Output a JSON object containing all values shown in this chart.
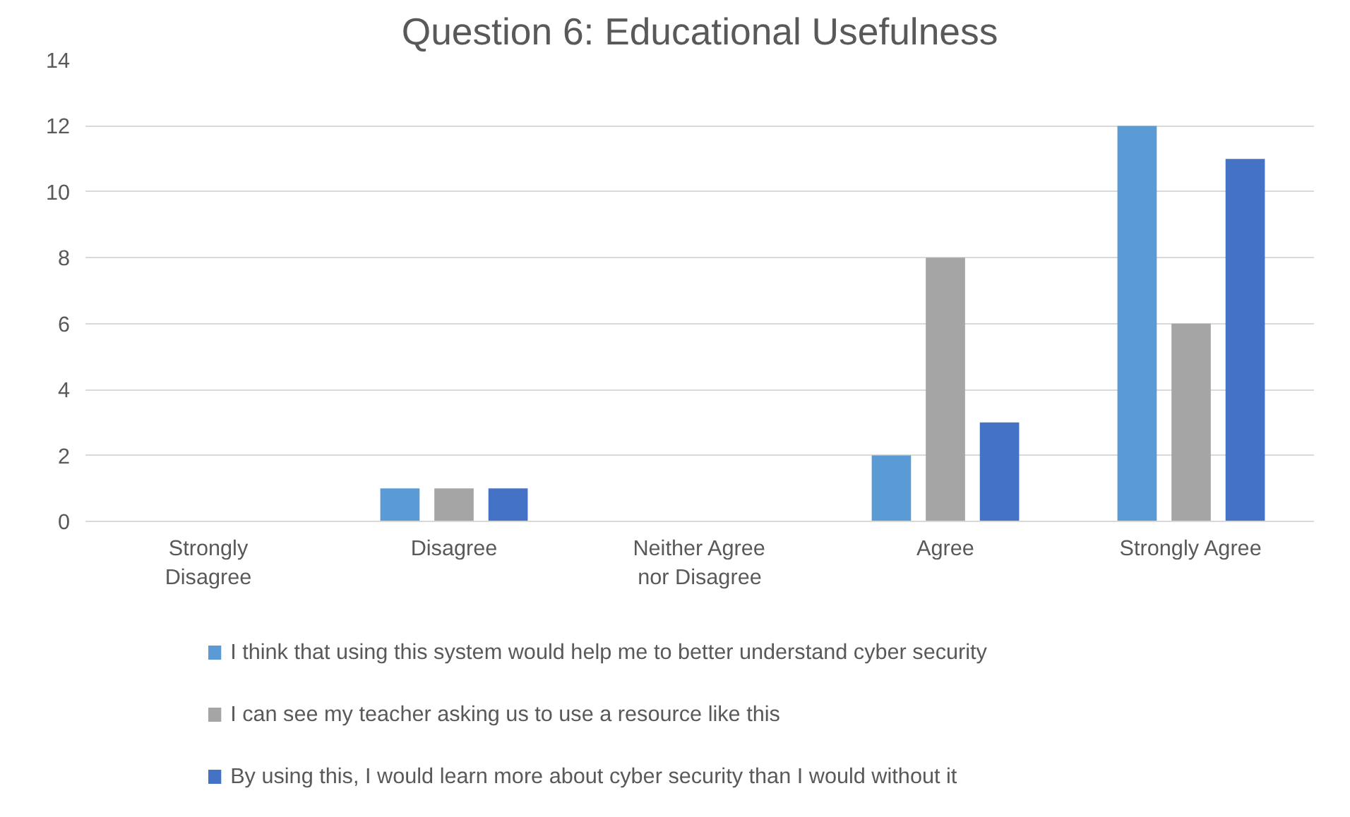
{
  "chart_data": {
    "type": "bar",
    "title": "Question 6: Educational Usefulness",
    "categories": [
      "Strongly Disagree",
      "Disagree",
      "Neither Agree nor Disagree",
      "Agree",
      "Strongly Agree"
    ],
    "series": [
      {
        "name": "I think that using this system would help me to better understand cyber security",
        "color": "#5b9bd5",
        "values": [
          0,
          1,
          0,
          2,
          12
        ]
      },
      {
        "name": "I can see my teacher asking us to use a resource like this",
        "color": "#a5a5a5",
        "values": [
          0,
          1,
          0,
          8,
          6
        ]
      },
      {
        "name": "By using this, I would learn more about cyber security than I would without it",
        "color": "#4472c4",
        "values": [
          0,
          1,
          0,
          3,
          11
        ]
      }
    ],
    "ylim": [
      0,
      14
    ],
    "yticks": [
      0,
      2,
      4,
      6,
      8,
      10,
      12,
      14
    ],
    "grid": "y",
    "legend": "bottom"
  }
}
